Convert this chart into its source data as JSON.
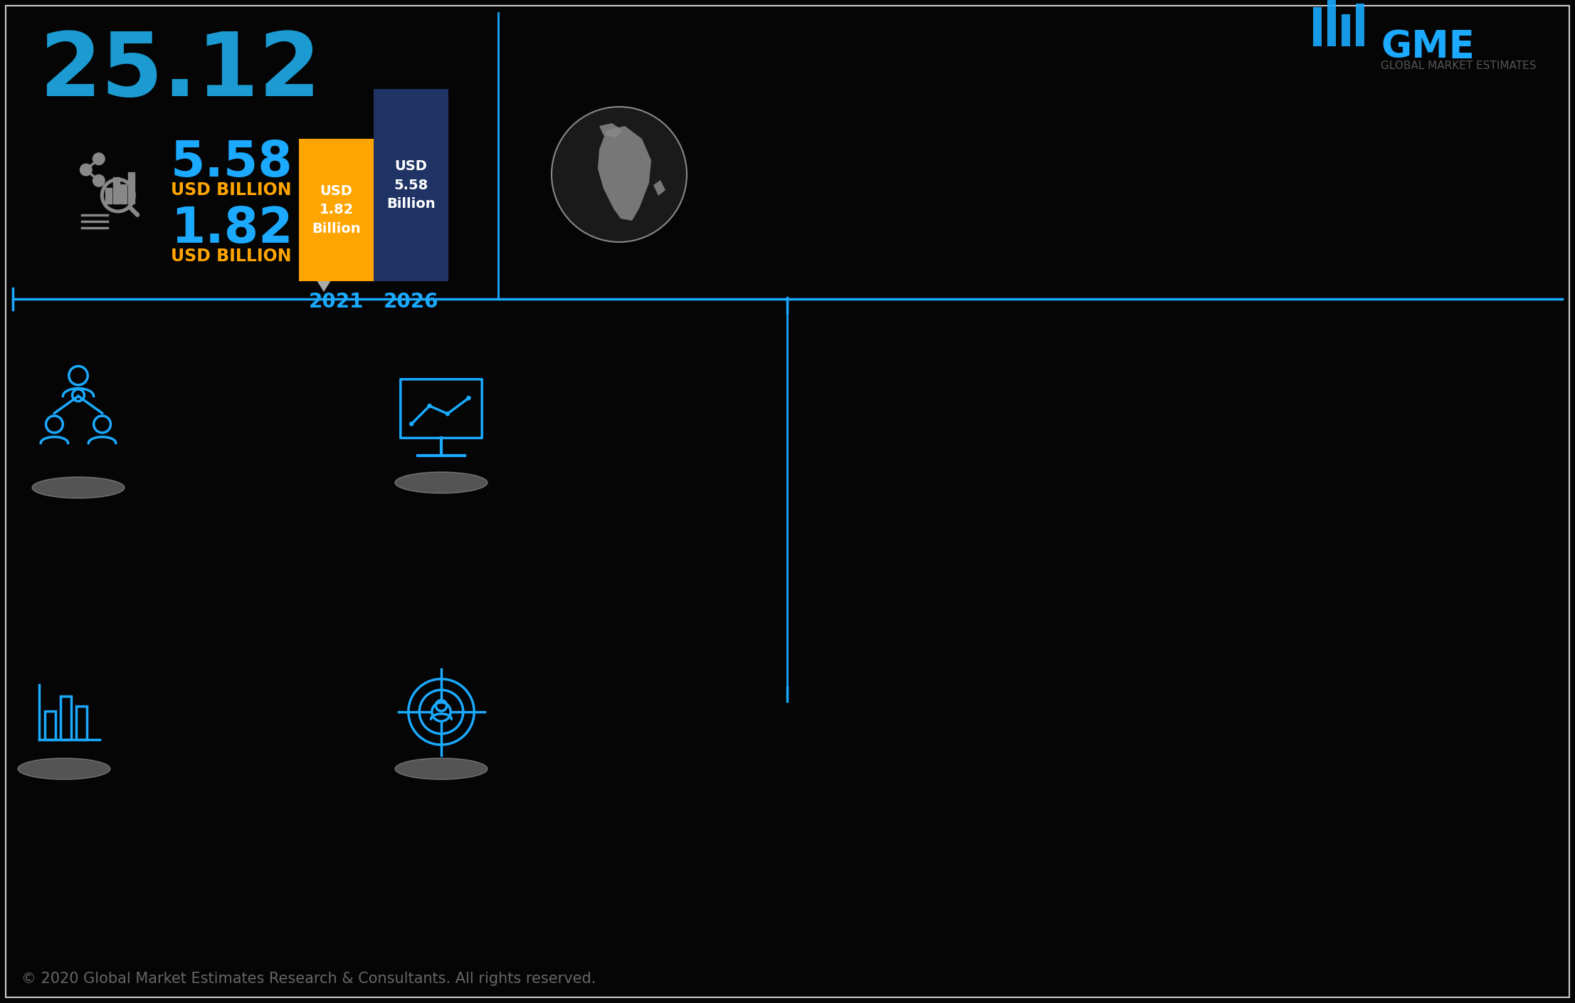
{
  "bg_color": "#050505",
  "title_number": "25.12",
  "title_color": "#1B9BD1",
  "title_fontsize": 90,
  "value_high": "5.58",
  "value_low": "1.82",
  "value_color": "#1BAAFF",
  "label_color": "#FFA500",
  "label_text": "USD BILLION",
  "bar_2021_color": "#FFA500",
  "bar_2026_color": "#1F3464",
  "year_2021": "2021",
  "year_2026": "2026",
  "year_color": "#1BAAFF",
  "line_color": "#1BAAFF",
  "arrow_color": "#aaaaaa",
  "icon_color_gray": "#888888",
  "icon_color_blue": "#1BAAFF",
  "footer_text": "© 2020 Global Market Estimates Research & Consultants. All rights reserved.",
  "footer_color": "#666666",
  "gme_text": "GME",
  "gme_color": "#1BAAFF",
  "gme_sub": "GLOBAL MARKET ESTIMATES",
  "white": "#ffffff"
}
